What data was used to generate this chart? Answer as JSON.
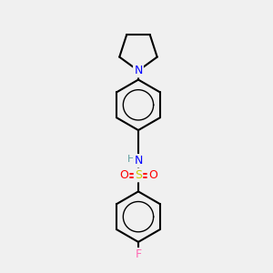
{
  "background_color": "#f0f0f0",
  "atom_colors": {
    "C": "#000000",
    "N": "#0000ff",
    "O": "#ff0000",
    "S": "#cccc00",
    "F": "#ff69b4",
    "H": "#5f9ea0"
  },
  "bond_color": "#000000",
  "figsize": [
    3.0,
    3.0
  ],
  "dpi": 100
}
